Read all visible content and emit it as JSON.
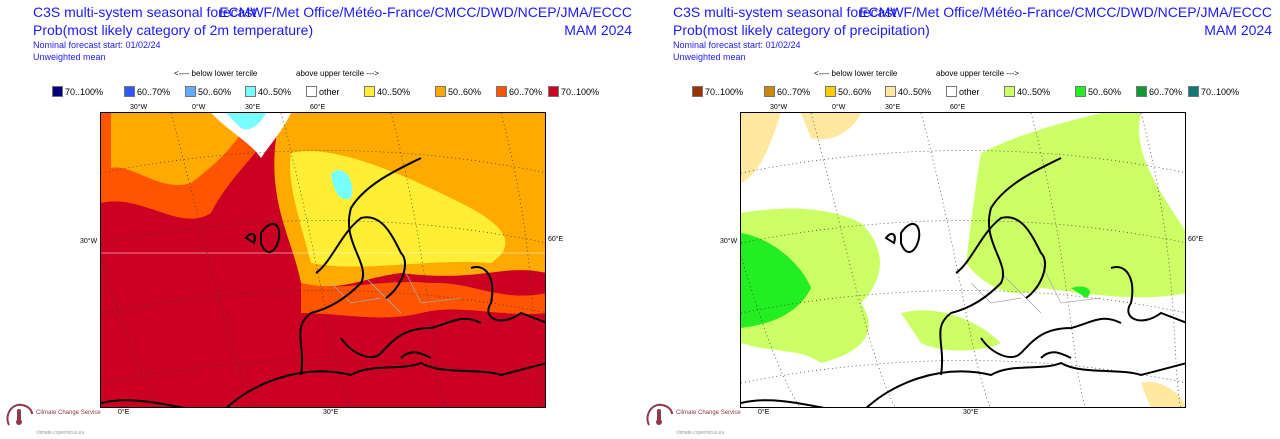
{
  "panels": [
    {
      "title": "C3S multi-system seasonal forecast",
      "subtitle": "Prob(most likely category of 2m temperature)",
      "nominal_start": "Nominal forecast start: 01/02/24",
      "weighting": "Unweighted mean",
      "sources": "ECMWF/Met Office/Météo-France/CMCC/DWD/NCEP/JMA/ECCC",
      "season": "MAM 2024",
      "below_label": "<---- below lower tercile",
      "above_label": "above upper tercile --->",
      "legend": [
        {
          "label": "70..100%",
          "color": "#000080"
        },
        {
          "label": "60..70%",
          "color": "#3355ff"
        },
        {
          "label": "50..60%",
          "color": "#66aaff"
        },
        {
          "label": "40..50%",
          "color": "#77ffff"
        },
        {
          "label": "other",
          "color": "#ffffff"
        },
        {
          "label": "40..50%",
          "color": "#ffee33"
        },
        {
          "label": "50..60%",
          "color": "#ffaa00"
        },
        {
          "label": "60..70%",
          "color": "#ff5500"
        },
        {
          "label": "70..100%",
          "color": "#cc0022"
        }
      ],
      "axis_labels": {
        "top": [
          "30°W",
          "0°W",
          "30°E",
          "60°E"
        ],
        "left": "30°W",
        "right": "60°E",
        "bottom": [
          "0°E",
          "30°E"
        ]
      }
    },
    {
      "title": "C3S multi-system seasonal forecast",
      "subtitle": "Prob(most likely category of precipitation)",
      "nominal_start": "Nominal forecast start: 01/02/24",
      "weighting": "Unweighted mean",
      "sources": "ECMWF/Met Office/Météo-France/CMCC/DWD/NCEP/JMA/ECCC",
      "season": "MAM 2024",
      "below_label": "<---- below lower tercile",
      "above_label": "above upper tercile --->",
      "legend": [
        {
          "label": "70..100%",
          "color": "#993300"
        },
        {
          "label": "60..70%",
          "color": "#cc8800"
        },
        {
          "label": "50..60%",
          "color": "#ffcc00"
        },
        {
          "label": "40..50%",
          "color": "#ffe9a0"
        },
        {
          "label": "other",
          "color": "#ffffff"
        },
        {
          "label": "40..50%",
          "color": "#ccff66"
        },
        {
          "label": "50..60%",
          "color": "#22ee22"
        },
        {
          "label": "60..70%",
          "color": "#119933"
        },
        {
          "label": "70..100%",
          "color": "#117777"
        }
      ],
      "axis_labels": {
        "top": [
          "30°W",
          "0°W",
          "30°E",
          "60°E"
        ],
        "left": "30°W",
        "right": "60°E",
        "bottom": [
          "0°E",
          "30°E"
        ]
      }
    }
  ],
  "logo": {
    "name": "Climate Change Service",
    "url": "climate.copernicus.eu"
  }
}
